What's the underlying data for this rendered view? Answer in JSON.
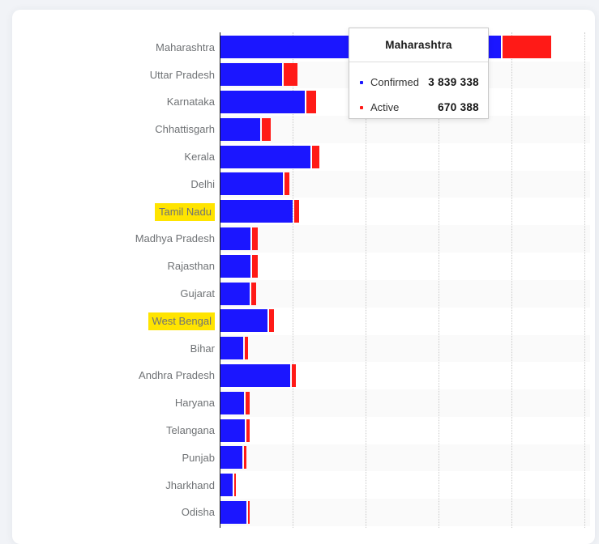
{
  "chart_data": {
    "type": "bar",
    "orientation": "horizontal",
    "stacked": true,
    "title": "",
    "xlabel": "",
    "ylabel": "",
    "xlim": [
      0,
      5000000
    ],
    "gridline_interval": 1000000,
    "gridlines": [
      1000000,
      2000000,
      3000000,
      4000000,
      5000000
    ],
    "tick_labels_visible": false,
    "categories": [
      "Maharashtra",
      "Uttar Pradesh",
      "Karnataka",
      "Chhattisgarh",
      "Kerala",
      "Delhi",
      "Tamil Nadu",
      "Madhya Pradesh",
      "Rajasthan",
      "Gujarat",
      "West Bengal",
      "Bihar",
      "Andhra Pradesh",
      "Haryana",
      "Telangana",
      "Punjab",
      "Jharkhand",
      "Odisha"
    ],
    "series": [
      {
        "name": "Confirmed",
        "color": "#1b16ff",
        "values": [
          3839338,
          845000,
          1156000,
          545000,
          1234000,
          856000,
          990000,
          411000,
          411000,
          400000,
          645000,
          311000,
          956000,
          322000,
          334000,
          300000,
          167000,
          356000
        ]
      },
      {
        "name": "Active",
        "color": "#ff1a17",
        "values": [
          670388,
          189000,
          133000,
          122000,
          105000,
          63000,
          63000,
          74000,
          74000,
          70000,
          70000,
          41000,
          56000,
          52000,
          44000,
          37000,
          22000,
          26000
        ]
      }
    ],
    "highlighted_categories": [
      "Tamil Nadu",
      "West Bengal"
    ],
    "highlight_color": "#ffe400",
    "stripe_color": "#fafafa"
  },
  "tooltip": {
    "title": "Maharashtra",
    "rows": [
      {
        "label": "Confirmed",
        "value": "3 839 338",
        "bullet_color": "#1b16ff"
      },
      {
        "label": "Active",
        "value": "670 388",
        "bullet_color": "#ff1a17"
      }
    ]
  }
}
